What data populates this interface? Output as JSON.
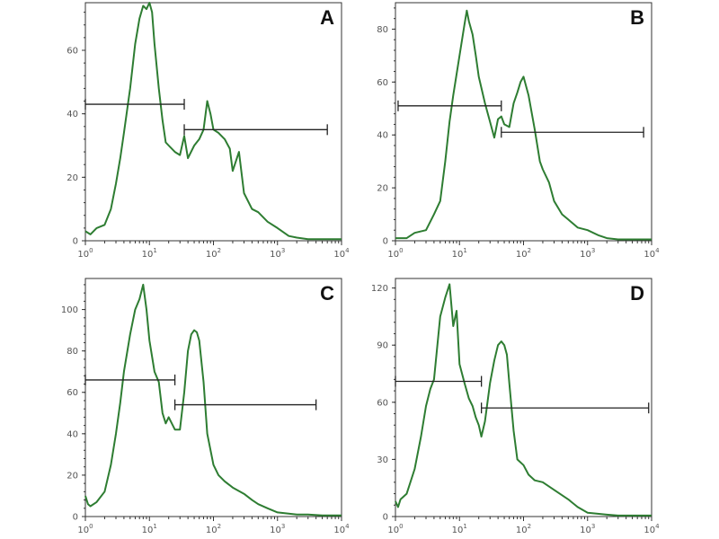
{
  "chart_data": [
    {
      "type": "line",
      "panel": "A",
      "xlabel": "",
      "ylabel": "",
      "xscale": "log",
      "xlim": [
        1,
        10000
      ],
      "x_ticks": [
        "10^0",
        "10^1",
        "10^2",
        "10^3",
        "10^4"
      ],
      "ylim": [
        0,
        75
      ],
      "y_ticks": [
        0,
        20,
        40,
        60
      ],
      "series": [
        {
          "name": "histogram",
          "x": [
            1.0,
            1.2,
            1.5,
            2.0,
            2.5,
            3.0,
            3.5,
            4.0,
            5.0,
            6.0,
            7.0,
            8.0,
            9.0,
            10.0,
            11.0,
            12.0,
            14.0,
            16.0,
            18.0,
            20.0,
            25.0,
            30.0,
            35.0,
            40.0,
            50.0,
            60.0,
            70.0,
            80.0,
            90.0,
            100.0,
            120.0,
            150.0,
            180.0,
            200.0,
            250.0,
            300.0,
            400.0,
            500.0,
            700.0,
            1000.0,
            1500.0,
            2000.0,
            3000.0,
            5000.0,
            10000.0
          ],
          "y": [
            3,
            2,
            4,
            5,
            10,
            18,
            26,
            34,
            48,
            62,
            70,
            74,
            73,
            75,
            72,
            62,
            48,
            38,
            31,
            30,
            28,
            27,
            33,
            26,
            30,
            32,
            35,
            44,
            40,
            35,
            34,
            32,
            29,
            22,
            28,
            15,
            10,
            9,
            6,
            4,
            1.5,
            1,
            0.5,
            0.5,
            0.5
          ]
        }
      ],
      "gates": [
        {
          "x_start": 1.0,
          "x_end": 35.0,
          "y": 43
        },
        {
          "x_start": 35.0,
          "x_end": 6000.0,
          "y": 35
        }
      ]
    },
    {
      "type": "line",
      "panel": "B",
      "xlabel": "",
      "ylabel": "",
      "xscale": "log",
      "xlim": [
        1,
        10000
      ],
      "x_ticks": [
        "10^0",
        "10^1",
        "10^2",
        "10^3",
        "10^4"
      ],
      "ylim": [
        0,
        90
      ],
      "y_ticks": [
        0,
        20,
        40,
        60,
        80
      ],
      "series": [
        {
          "name": "histogram",
          "x": [
            1.0,
            1.5,
            2.0,
            3.0,
            4.0,
            5.0,
            6.0,
            7.0,
            8.0,
            10.0,
            12.0,
            13.0,
            14.0,
            16.0,
            18.0,
            20.0,
            25.0,
            30.0,
            35.0,
            40.0,
            45.0,
            50.0,
            60.0,
            70.0,
            80.0,
            90.0,
            100.0,
            120.0,
            150.0,
            180.0,
            200.0,
            250.0,
            300.0,
            400.0,
            500.0,
            700.0,
            1000.0,
            1500.0,
            2000.0,
            3000.0,
            5000.0,
            10000.0
          ],
          "y": [
            1,
            1,
            3,
            4,
            10,
            15,
            30,
            45,
            55,
            70,
            82,
            87,
            83,
            78,
            70,
            62,
            52,
            45,
            39,
            46,
            47,
            44,
            43,
            52,
            56,
            60,
            62,
            55,
            42,
            30,
            27,
            22,
            15,
            10,
            8,
            5,
            4,
            2,
            1,
            0.5,
            0.5,
            0.5
          ]
        }
      ],
      "gates": [
        {
          "x_start": 1.1,
          "x_end": 45.0,
          "y": 51
        },
        {
          "x_start": 45.0,
          "x_end": 7500.0,
          "y": 41
        }
      ]
    },
    {
      "type": "line",
      "panel": "C",
      "xlabel": "",
      "ylabel": "",
      "xscale": "log",
      "xlim": [
        1,
        10000
      ],
      "x_ticks": [
        "10^0",
        "10^1",
        "10^2",
        "10^3",
        "10^4"
      ],
      "ylim": [
        0,
        115
      ],
      "y_ticks": [
        0,
        20,
        40,
        60,
        80,
        100
      ],
      "series": [
        {
          "name": "histogram",
          "x": [
            1.0,
            1.1,
            1.2,
            1.5,
            2.0,
            2.5,
            3.0,
            3.5,
            4.0,
            5.0,
            6.0,
            7.0,
            8.0,
            9.0,
            10.0,
            12.0,
            14.0,
            16.0,
            18.0,
            20.0,
            25.0,
            30.0,
            35.0,
            40.0,
            45.0,
            50.0,
            55.0,
            60.0,
            70.0,
            80.0,
            100.0,
            120.0,
            150.0,
            200.0,
            300.0,
            400.0,
            500.0,
            700.0,
            1000.0,
            2000.0,
            3000.0,
            5000.0,
            10000.0
          ],
          "y": [
            10,
            6,
            5,
            7,
            12,
            25,
            40,
            55,
            70,
            88,
            100,
            105,
            112,
            100,
            85,
            70,
            65,
            50,
            45,
            48,
            42,
            42,
            60,
            80,
            88,
            90,
            89,
            85,
            65,
            40,
            25,
            20,
            17,
            14,
            11,
            8,
            6,
            4,
            2,
            1,
            1,
            0.5,
            0.5
          ]
        }
      ],
      "gates": [
        {
          "x_start": 1.0,
          "x_end": 25.0,
          "y": 66
        },
        {
          "x_start": 25.0,
          "x_end": 4000.0,
          "y": 54
        }
      ]
    },
    {
      "type": "line",
      "panel": "D",
      "xlabel": "",
      "ylabel": "",
      "xscale": "log",
      "xlim": [
        1,
        10000
      ],
      "x_ticks": [
        "10^0",
        "10^1",
        "10^2",
        "10^3",
        "10^4"
      ],
      "ylim": [
        0,
        125
      ],
      "y_ticks": [
        0,
        30,
        60,
        90,
        120
      ],
      "series": [
        {
          "name": "histogram",
          "x": [
            1.0,
            1.1,
            1.2,
            1.5,
            2.0,
            2.5,
            3.0,
            3.5,
            4.0,
            5.0,
            6.0,
            7.0,
            8.0,
            9.0,
            10.0,
            12.0,
            14.0,
            16.0,
            18.0,
            20.0,
            22.0,
            25.0,
            30.0,
            35.0,
            40.0,
            45.0,
            50.0,
            55.0,
            60.0,
            70.0,
            80.0,
            100.0,
            120.0,
            150.0,
            200.0,
            300.0,
            500.0,
            700.0,
            1000.0,
            2000.0,
            3000.0,
            5000.0,
            10000.0
          ],
          "y": [
            8,
            5,
            9,
            12,
            25,
            42,
            58,
            67,
            72,
            105,
            115,
            122,
            100,
            108,
            80,
            70,
            62,
            58,
            52,
            48,
            42,
            50,
            70,
            82,
            90,
            92,
            90,
            85,
            70,
            45,
            30,
            27,
            22,
            19,
            18,
            14,
            9,
            5,
            2,
            1,
            0.5,
            0.5,
            0.5
          ]
        }
      ],
      "gates": [
        {
          "x_start": 1.0,
          "x_end": 22.0,
          "y": 71
        },
        {
          "x_start": 22.0,
          "x_end": 9000.0,
          "y": 57
        }
      ]
    }
  ]
}
